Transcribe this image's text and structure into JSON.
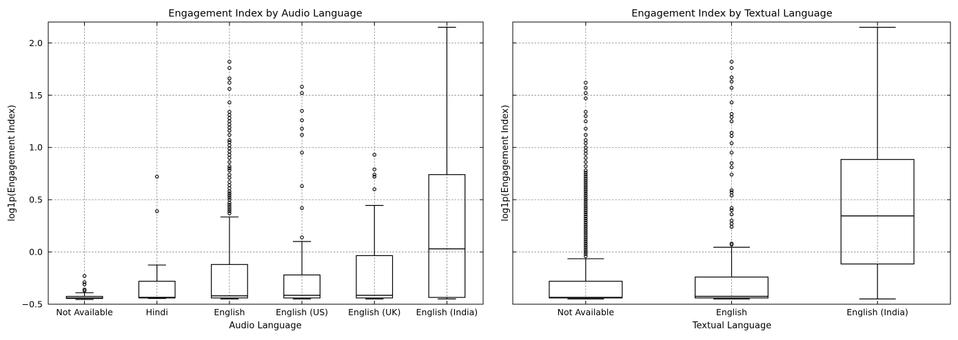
{
  "chart_data": [
    {
      "type": "box",
      "title": "Engagement Index by Audio Language",
      "xlabel": "Audio Language",
      "ylabel": "log1p(Engagement Index)",
      "ylim": [
        -0.5,
        2.2
      ],
      "yticks": [
        -0.5,
        0.0,
        0.5,
        1.0,
        1.5,
        2.0
      ],
      "ytick_labels": [
        "−0.5",
        "0.0",
        "0.5",
        "1.0",
        "1.5",
        "2.0"
      ],
      "grid": true,
      "categories": [
        "Not Available",
        "Hindi",
        "English",
        "English (US)",
        "English (UK)",
        "English (India)"
      ],
      "boxes": [
        {
          "whisker_low": -0.455,
          "q1": -0.445,
          "median": -0.44,
          "q3": -0.425,
          "whisker_high": -0.39,
          "outliers": [
            -0.23,
            -0.29,
            -0.31,
            -0.36,
            -0.37
          ]
        },
        {
          "whisker_low": -0.445,
          "q1": -0.44,
          "median": -0.435,
          "q3": -0.28,
          "whisker_high": -0.125,
          "outliers": [
            0.39,
            0.72
          ]
        },
        {
          "whisker_low": -0.45,
          "q1": -0.44,
          "median": -0.42,
          "q3": -0.12,
          "whisker_high": 0.335,
          "outliers": [
            0.37,
            0.39,
            0.41,
            0.43,
            0.45,
            0.47,
            0.5,
            0.52,
            0.54,
            0.56,
            0.58,
            0.61,
            0.64,
            0.67,
            0.71,
            0.74,
            0.78,
            0.8,
            0.82,
            0.86,
            0.9,
            0.93,
            0.96,
            0.99,
            1.02,
            1.05,
            1.07,
            1.12,
            1.16,
            1.19,
            1.22,
            1.25,
            1.28,
            1.31,
            1.34,
            1.43,
            1.56,
            1.62,
            1.66,
            1.76,
            1.82
          ]
        },
        {
          "whisker_low": -0.45,
          "q1": -0.44,
          "median": -0.415,
          "q3": -0.22,
          "whisker_high": 0.1,
          "outliers": [
            0.14,
            0.42,
            0.63,
            0.95,
            1.12,
            1.18,
            1.26,
            1.35,
            1.52,
            1.58
          ]
        },
        {
          "whisker_low": -0.45,
          "q1": -0.44,
          "median": -0.415,
          "q3": -0.035,
          "whisker_high": 0.445,
          "outliers": [
            0.6,
            0.72,
            0.74,
            0.79,
            0.93
          ]
        },
        {
          "whisker_low": -0.45,
          "q1": -0.435,
          "median": 0.03,
          "q3": 0.74,
          "whisker_high": 2.15,
          "outliers": []
        }
      ]
    },
    {
      "type": "box",
      "title": "Engagement Index by Textual Language",
      "xlabel": "Textual Language",
      "ylabel": "log1p(Engagement Index)",
      "ylim": [
        -0.5,
        2.2
      ],
      "yticks": [
        -0.5,
        0.0,
        0.5,
        1.0,
        1.5,
        2.0
      ],
      "sharey": true,
      "grid": true,
      "categories": [
        "Not Available",
        "English",
        "English (India)"
      ],
      "boxes": [
        {
          "whisker_low": -0.45,
          "q1": -0.44,
          "median": -0.435,
          "q3": -0.28,
          "whisker_high": -0.065,
          "outliers": [
            -0.04,
            -0.02,
            0.0,
            0.02,
            0.04,
            0.06,
            0.08,
            0.1,
            0.12,
            0.14,
            0.16,
            0.18,
            0.2,
            0.22,
            0.24,
            0.26,
            0.28,
            0.3,
            0.32,
            0.34,
            0.36,
            0.38,
            0.4,
            0.42,
            0.44,
            0.46,
            0.48,
            0.5,
            0.52,
            0.54,
            0.56,
            0.58,
            0.6,
            0.62,
            0.64,
            0.66,
            0.68,
            0.7,
            0.72,
            0.74,
            0.76,
            0.78,
            0.82,
            0.86,
            0.9,
            0.94,
            0.97,
            1.0,
            1.04,
            1.07,
            1.12,
            1.18,
            1.25,
            1.3,
            1.34,
            1.47,
            1.52,
            1.57,
            1.62
          ]
        },
        {
          "whisker_low": -0.45,
          "q1": -0.44,
          "median": -0.425,
          "q3": -0.24,
          "whisker_high": 0.045,
          "outliers": [
            0.07,
            0.08,
            0.24,
            0.27,
            0.3,
            0.36,
            0.4,
            0.42,
            0.54,
            0.57,
            0.59,
            0.74,
            0.81,
            0.85,
            0.95,
            1.04,
            1.11,
            1.14,
            1.25,
            1.29,
            1.32,
            1.43,
            1.57,
            1.63,
            1.67,
            1.76,
            1.82
          ]
        },
        {
          "whisker_low": -0.45,
          "q1": -0.115,
          "median": 0.345,
          "q3": 0.885,
          "whisker_high": 2.15,
          "outliers": []
        }
      ]
    }
  ]
}
